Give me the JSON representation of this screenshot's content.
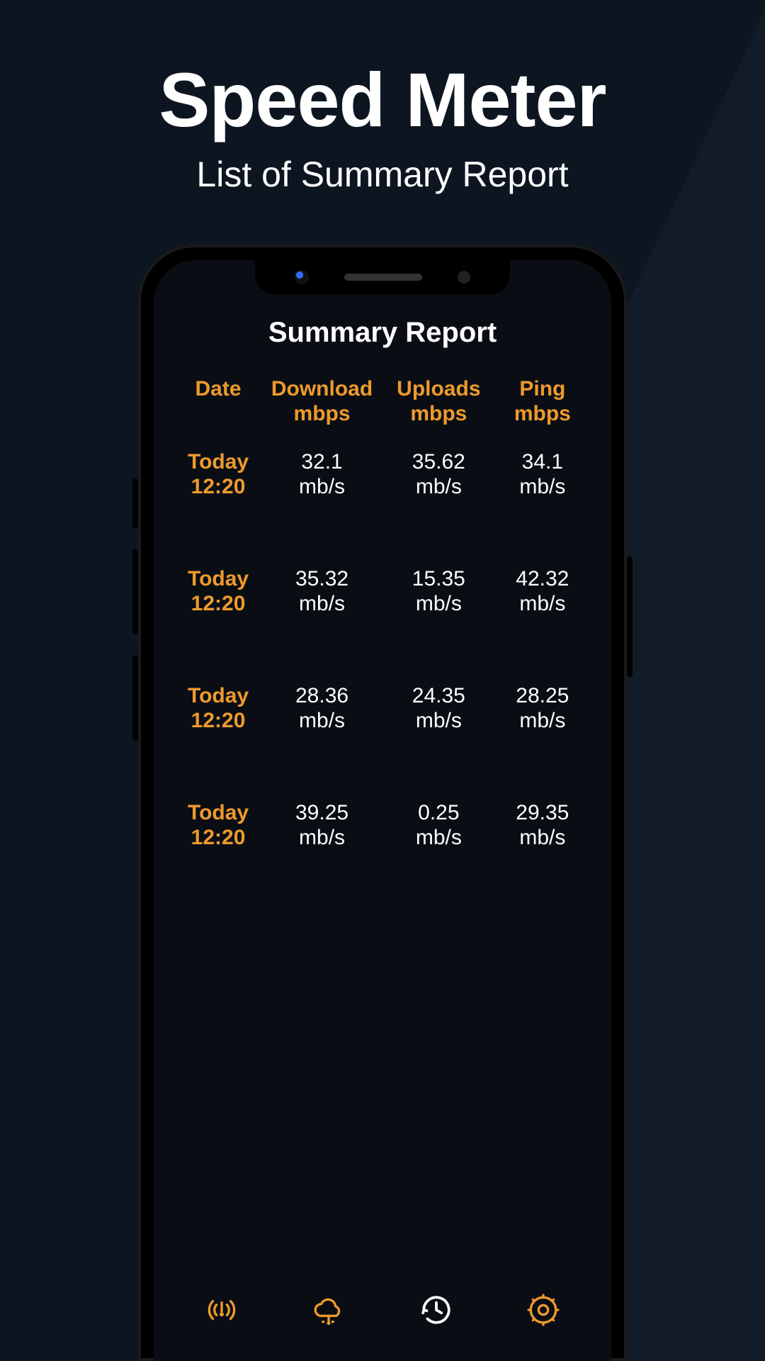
{
  "colors": {
    "background": "#0d1620",
    "background_alt": "#121c28",
    "phone_body": "#000000",
    "screen_bg": "#0a0e14",
    "text_primary": "#ffffff",
    "accent": "#ee9a2c"
  },
  "hero": {
    "title": "Speed Meter",
    "subtitle": "List of Summary Report"
  },
  "screen": {
    "title": "Summary Report",
    "columns": [
      {
        "line1": "Date",
        "line2": ""
      },
      {
        "line1": "Download",
        "line2": "mbps"
      },
      {
        "line1": "Uploads",
        "line2": "mbps"
      },
      {
        "line1": "Ping",
        "line2": "mbps"
      }
    ],
    "rows": [
      {
        "date": {
          "line1": "Today",
          "line2": "12:20"
        },
        "download": {
          "line1": "32.1",
          "line2": "mb/s"
        },
        "upload": {
          "line1": "35.62",
          "line2": "mb/s"
        },
        "ping": {
          "line1": "34.1",
          "line2": "mb/s"
        }
      },
      {
        "date": {
          "line1": "Today",
          "line2": "12:20"
        },
        "download": {
          "line1": "35.32",
          "line2": "mb/s"
        },
        "upload": {
          "line1": "15.35",
          "line2": "mb/s"
        },
        "ping": {
          "line1": "42.32",
          "line2": "mb/s"
        }
      },
      {
        "date": {
          "line1": "Today",
          "line2": "12:20"
        },
        "download": {
          "line1": "28.36",
          "line2": "mb/s"
        },
        "upload": {
          "line1": "24.35",
          "line2": "mb/s"
        },
        "ping": {
          "line1": "28.25",
          "line2": "mb/s"
        }
      },
      {
        "date": {
          "line1": "Today",
          "line2": "12:20"
        },
        "download": {
          "line1": "39.25",
          "line2": "mb/s"
        },
        "upload": {
          "line1": "0.25",
          "line2": "mb/s"
        },
        "ping": {
          "line1": "29.35",
          "line2": "mb/s"
        }
      }
    ]
  },
  "nav": {
    "items": [
      {
        "name": "signal-icon",
        "active": true
      },
      {
        "name": "cloud-icon",
        "active": true
      },
      {
        "name": "history-icon",
        "active": false
      },
      {
        "name": "gear-icon",
        "active": true
      }
    ]
  }
}
